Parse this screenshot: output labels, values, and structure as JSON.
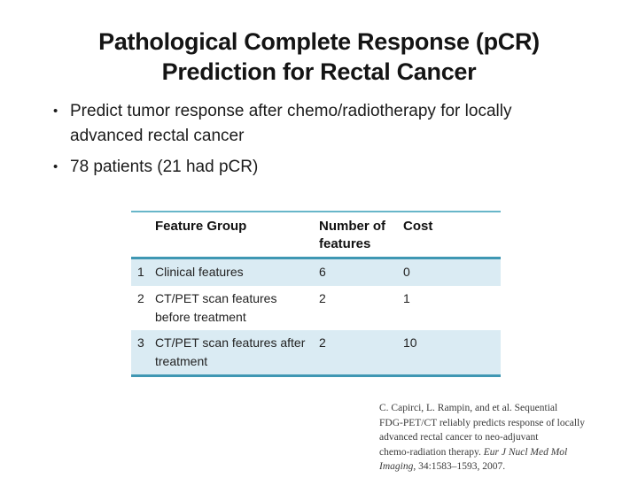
{
  "slide": {
    "background_color": "#FFFFFF",
    "title": {
      "line1": "Pathological Complete Response (pCR)",
      "line2": "Prediction for Rectal Cancer",
      "color": "#141414"
    },
    "bullet_char": "•",
    "bullets": [
      {
        "lines": [
          "Predict tumor response after chemo/radiotherapy for locally",
          "advanced rectal cancer"
        ]
      },
      {
        "lines": [
          "78 patients (21 had pCR)"
        ]
      }
    ]
  },
  "table": {
    "headers": {
      "row_number": "",
      "feature_group": "Feature Group",
      "number_of_features": "Number of features",
      "cost": "Cost"
    },
    "rows": [
      {
        "num": "1",
        "feature_group": "Clinical features",
        "num_features": "6",
        "cost": "0"
      },
      {
        "num": "2",
        "feature_group": "CT/PET scan features before treatment",
        "num_features": "2",
        "cost": "1"
      },
      {
        "num": "3",
        "feature_group": "CT/PET scan features after treatment",
        "num_features": "2",
        "cost": "10"
      }
    ],
    "colors": {
      "border_top": "#68B6C9",
      "border_accent": "#3F97B3",
      "band_fill": "#DAEBF3",
      "accent_theme": "#4BACC6"
    }
  },
  "citation": {
    "line1": "C. Capirci, L. Rampin, and et al. Sequential",
    "line2": "FDG-PET/CT reliably predicts response of locally",
    "line3": "advanced rectal cancer to neo-adjuvant",
    "line4_regular": "chemo-radiation therapy. ",
    "line4_italic": "Eur J Nucl Med Mol",
    "line5_italic": "Imaging",
    "line5_regular": ", 34:1583–1593, 2007."
  }
}
